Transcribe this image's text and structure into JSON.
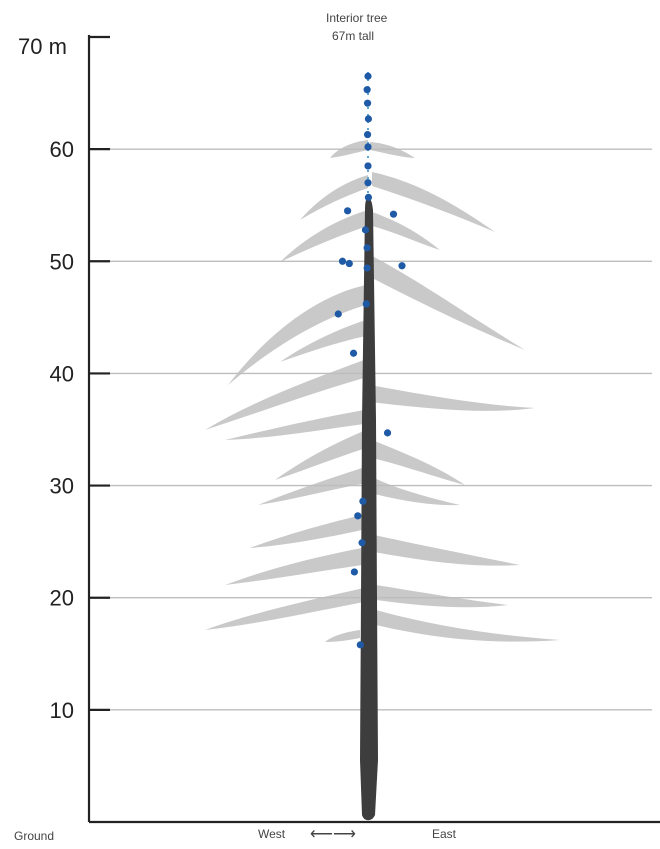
{
  "chart_data": {
    "type": "scatter",
    "title": "Interior tree",
    "subtitle": "67m tall",
    "ylim": [
      0,
      70
    ],
    "y_unit_label": "70 m",
    "y_ticks": [
      10,
      20,
      30,
      40,
      50,
      60
    ],
    "ground_label": "Ground",
    "x_axis": {
      "west_label": "West",
      "east_label": "East",
      "arrow": "⟵⟶"
    },
    "grid": true,
    "tree_height": 67,
    "colors": {
      "point": "#1f5aa6",
      "trunk": "#3d3d3d",
      "foliage": "#c9c9c9"
    },
    "series": [
      {
        "values": [
          {
            "x": 0,
            "y": 66.5
          },
          {
            "x": -0.1,
            "y": 65.3
          },
          {
            "x": -0.05,
            "y": 64.1
          },
          {
            "x": 0.05,
            "y": 62.7
          },
          {
            "x": -0.05,
            "y": 61.3
          },
          {
            "x": 0,
            "y": 60.2
          },
          {
            "x": 0,
            "y": 58.5
          },
          {
            "x": 0,
            "y": 57.0
          },
          {
            "x": 0.05,
            "y": 55.7
          },
          {
            "x": -2.4,
            "y": 54.5
          },
          {
            "x": 3.0,
            "y": 54.2
          },
          {
            "x": -0.3,
            "y": 52.8
          },
          {
            "x": -0.1,
            "y": 51.2
          },
          {
            "x": -3.0,
            "y": 50.0
          },
          {
            "x": -2.2,
            "y": 49.8
          },
          {
            "x": -0.1,
            "y": 49.4
          },
          {
            "x": 4.0,
            "y": 49.6
          },
          {
            "x": -0.2,
            "y": 46.2
          },
          {
            "x": -3.5,
            "y": 45.3
          },
          {
            "x": -1.7,
            "y": 41.8
          },
          {
            "x": 2.3,
            "y": 34.7
          },
          {
            "x": -0.6,
            "y": 28.6
          },
          {
            "x": -1.2,
            "y": 27.3
          },
          {
            "x": -0.7,
            "y": 24.9
          },
          {
            "x": -1.6,
            "y": 22.3
          },
          {
            "x": -0.9,
            "y": 15.8
          }
        ]
      }
    ]
  }
}
